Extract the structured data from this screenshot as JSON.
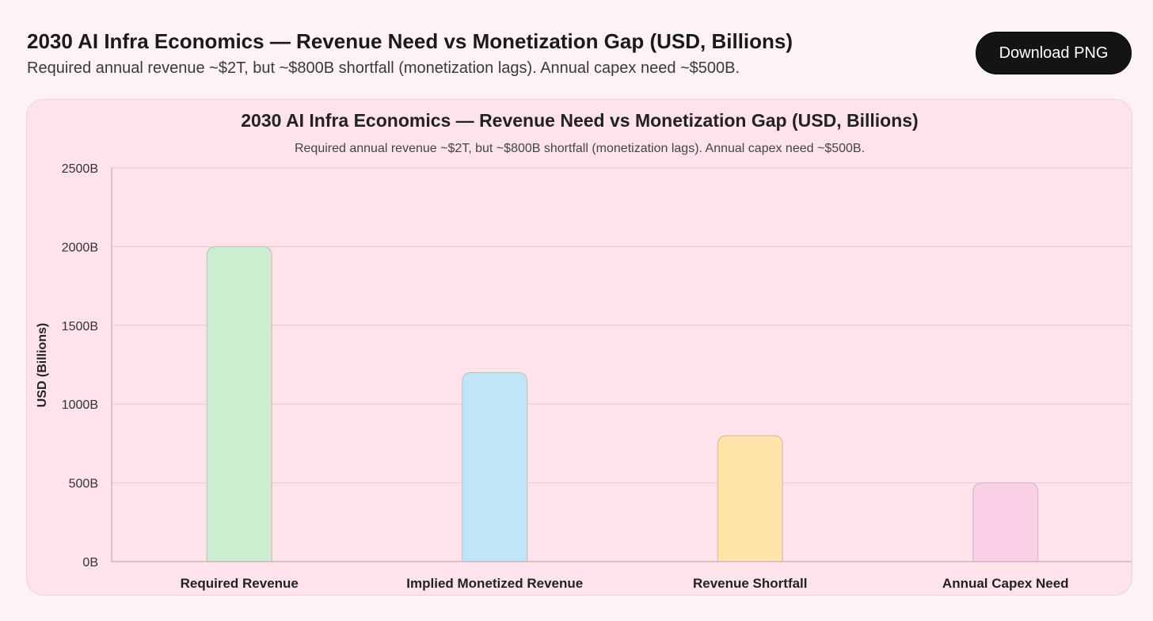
{
  "header": {
    "title": "2030 AI Infra Economics — Revenue Need vs Monetization Gap (USD, Billions)",
    "subtitle": "Required annual revenue ~$2T, but ~$800B shortfall (monetization lags). Annual capex need ~$500B.",
    "download_label": "Download PNG"
  },
  "chart_data": {
    "type": "bar",
    "title": "2030 AI Infra Economics — Revenue Need vs Monetization Gap (USD, Billions)",
    "subtitle": "Required annual revenue ~$2T, but ~$800B shortfall (monetization lags). Annual capex need ~$500B.",
    "xlabel": "",
    "ylabel": "USD (Billions)",
    "ylim": [
      0,
      2500
    ],
    "yticks": [
      0,
      500,
      1000,
      1500,
      2000,
      2500
    ],
    "ytick_labels": [
      "0B",
      "500B",
      "1000B",
      "1500B",
      "2000B",
      "2500B"
    ],
    "categories": [
      "Required Revenue",
      "Implied Monetized Revenue",
      "Revenue Shortfall",
      "Annual Capex Need"
    ],
    "values": [
      2000,
      1200,
      800,
      500
    ],
    "colors": [
      "#ccedd0",
      "#c0e4f8",
      "#ffe3a8",
      "#f9d0e6"
    ],
    "grid": true,
    "legend": "none"
  }
}
